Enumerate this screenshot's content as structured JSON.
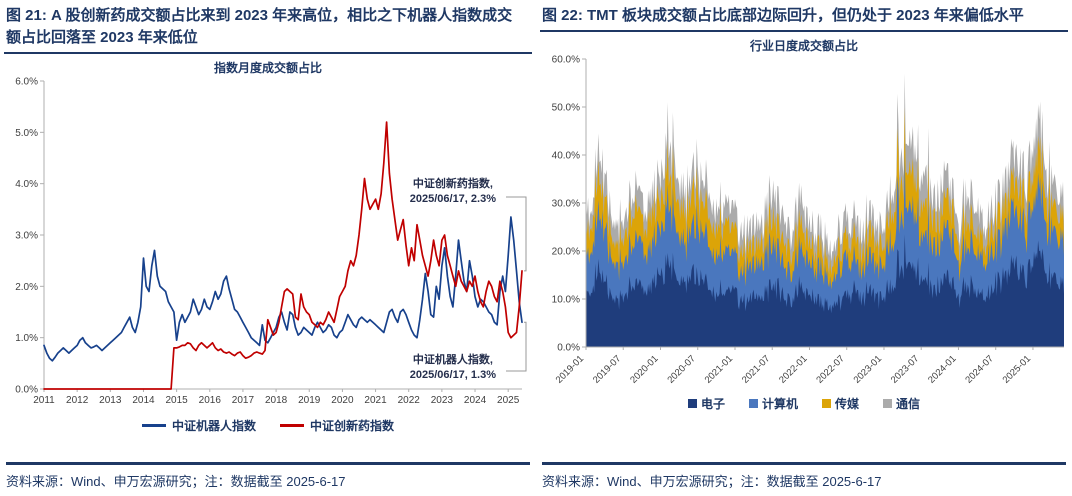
{
  "figures": [
    {
      "title": "图 21: A 股创新药成交额占比来到 2023 年来高位，相比之下机器人指数成交额占比回落至 2023 年来低位",
      "chart_title": "指数月度成交额占比",
      "source_note": "资料来源：Wind、申万宏源研究；注：数据截至 2025-6-17",
      "annotations": [
        {
          "line1": "中证创新药指数,",
          "line2": "2025/06/17, 2.3%",
          "value": 2.3,
          "series": "中证创新药指数"
        },
        {
          "line1": "中证机器人指数,",
          "line2": "2025/06/17, 1.3%",
          "value": 1.3,
          "series": "中证机器人指数"
        }
      ]
    },
    {
      "title": "图 22: TMT 板块成交额占比底部边际回升，但仍处于 2023 年来偏低水平",
      "chart_title": "行业日度成交额占比",
      "source_note": "资料来源：Wind、申万宏源研究；注：数据截至 2025-6-17"
    }
  ],
  "colors": {
    "title_navy": "#1F3864",
    "axis_line": "#AFAFAF",
    "tick_text": "#404040",
    "callout": "#9A9A9A"
  },
  "chart_data": [
    {
      "type": "line",
      "title": "指数月度成交额占比",
      "x_start": "2011-01",
      "x_end": "2025-06",
      "x_ticks": [
        "2011",
        "2012",
        "2013",
        "2014",
        "2015",
        "2016",
        "2017",
        "2018",
        "2019",
        "2020",
        "2021",
        "2022",
        "2023",
        "2024",
        "2025"
      ],
      "ylim": [
        0,
        6
      ],
      "y_ticks": [
        "0.0%",
        "1.0%",
        "2.0%",
        "3.0%",
        "4.0%",
        "5.0%",
        "6.0%"
      ],
      "legend_position": "bottom",
      "grid": false,
      "series": [
        {
          "name": "中证机器人指数",
          "color": "#17418C",
          "values": [
            0.85,
            0.7,
            0.6,
            0.55,
            0.62,
            0.7,
            0.75,
            0.8,
            0.75,
            0.7,
            0.75,
            0.8,
            0.85,
            0.95,
            1.0,
            0.9,
            0.85,
            0.8,
            0.82,
            0.85,
            0.8,
            0.75,
            0.8,
            0.85,
            0.9,
            0.95,
            1.0,
            1.05,
            1.1,
            1.2,
            1.3,
            1.4,
            1.2,
            1.1,
            1.3,
            1.6,
            2.55,
            2.0,
            1.9,
            2.4,
            2.7,
            2.2,
            2.0,
            1.95,
            1.9,
            1.7,
            1.6,
            1.5,
            0.95,
            1.3,
            1.45,
            1.3,
            1.4,
            1.5,
            1.75,
            1.6,
            1.45,
            1.55,
            1.75,
            1.6,
            1.55,
            1.7,
            1.9,
            1.75,
            1.85,
            2.1,
            2.2,
            1.95,
            1.75,
            1.55,
            1.5,
            1.4,
            1.3,
            1.2,
            1.1,
            1.0,
            0.95,
            0.9,
            0.85,
            1.25,
            0.95,
            0.9,
            1.0,
            1.1,
            1.2,
            1.4,
            1.5,
            1.3,
            1.15,
            1.5,
            1.45,
            1.2,
            1.05,
            1.1,
            1.2,
            1.15,
            1.1,
            1.05,
            1.2,
            1.3,
            1.2,
            1.1,
            1.15,
            1.25,
            1.2,
            1.05,
            1.0,
            1.1,
            1.15,
            1.3,
            1.45,
            1.35,
            1.25,
            1.2,
            1.35,
            1.4,
            1.35,
            1.3,
            1.35,
            1.3,
            1.25,
            1.2,
            1.15,
            1.1,
            1.3,
            1.5,
            1.55,
            1.4,
            1.3,
            1.5,
            1.55,
            1.45,
            1.3,
            1.15,
            1.05,
            1.0,
            1.35,
            1.75,
            2.25,
            1.9,
            1.45,
            1.4,
            2.0,
            1.75,
            2.4,
            2.75,
            2.2,
            1.8,
            1.6,
            2.2,
            2.9,
            2.5,
            2.1,
            1.9,
            2.5,
            2.2,
            1.8,
            1.6,
            1.75,
            1.7,
            1.6,
            1.5,
            1.45,
            1.3,
            1.25,
            1.9,
            2.2,
            1.9,
            2.6,
            3.35,
            2.9,
            2.3,
            1.7,
            1.3
          ]
        },
        {
          "name": "中证创新药指数",
          "color": "#C00000",
          "values": [
            0,
            0,
            0,
            0,
            0,
            0,
            0,
            0,
            0,
            0,
            0,
            0,
            0,
            0,
            0,
            0,
            0,
            0,
            0,
            0,
            0,
            0,
            0,
            0,
            0,
            0,
            0,
            0,
            0,
            0,
            0,
            0,
            0,
            0,
            0,
            0,
            0,
            0,
            0,
            0,
            0,
            0,
            0,
            0,
            0,
            0,
            0,
            0.8,
            0.8,
            0.82,
            0.85,
            0.85,
            0.9,
            0.88,
            0.8,
            0.75,
            0.85,
            0.9,
            0.85,
            0.8,
            0.85,
            0.9,
            0.8,
            0.75,
            0.78,
            0.72,
            0.7,
            0.72,
            0.68,
            0.65,
            0.7,
            0.72,
            0.65,
            0.6,
            0.62,
            0.65,
            0.7,
            0.72,
            0.7,
            0.68,
            0.75,
            1.35,
            1.2,
            1.05,
            1.1,
            1.3,
            1.6,
            1.9,
            1.95,
            1.9,
            1.85,
            1.4,
            1.35,
            1.85,
            1.6,
            1.5,
            1.45,
            1.3,
            1.25,
            1.2,
            1.3,
            1.25,
            1.35,
            1.5,
            1.4,
            1.3,
            1.55,
            1.8,
            1.9,
            2.0,
            2.3,
            2.5,
            2.4,
            2.6,
            3.0,
            3.5,
            4.1,
            3.7,
            3.5,
            3.6,
            3.7,
            3.5,
            3.8,
            4.4,
            5.2,
            4.2,
            3.7,
            3.3,
            2.9,
            3.1,
            3.3,
            2.8,
            2.4,
            2.75,
            2.5,
            3.2,
            2.9,
            2.6,
            2.4,
            2.2,
            2.5,
            2.9,
            2.6,
            2.4,
            2.9,
            3.0,
            2.6,
            2.4,
            2.2,
            2.0,
            2.3,
            2.1,
            2.0,
            1.9,
            2.1,
            2.0,
            2.2,
            1.9,
            1.7,
            1.6,
            1.9,
            2.1,
            2.0,
            1.8,
            1.7,
            2.1,
            1.9,
            1.6,
            1.1,
            1.0,
            1.05,
            1.1,
            1.6,
            2.3
          ]
        }
      ]
    },
    {
      "type": "area",
      "title": "行业日度成交额占比",
      "stacked": true,
      "x_start": "2019-01",
      "x_end": "2025-06",
      "x_ticks": [
        "2019-01",
        "2019-07",
        "2020-01",
        "2020-07",
        "2021-01",
        "2021-07",
        "2022-01",
        "2022-07",
        "2023-01",
        "2023-07",
        "2024-01",
        "2024-07",
        "2025-01"
      ],
      "ylim": [
        0,
        60
      ],
      "y_ticks": [
        "0.0%",
        "10.0%",
        "20.0%",
        "30.0%",
        "40.0%",
        "50.0%",
        "60.0%"
      ],
      "legend_position": "bottom",
      "grid": false,
      "note": "monthly mean levels (%); rendered with daily-style jitter",
      "series": [
        {
          "name": "电子",
          "color": "#1F3D7C",
          "values": [
            11,
            13,
            15,
            14,
            11,
            10,
            10,
            12,
            13,
            11,
            12,
            13,
            15,
            17,
            16,
            13,
            12,
            13,
            15,
            14,
            13,
            12,
            12,
            11,
            11,
            10,
            10,
            10,
            10,
            11,
            12,
            12,
            11,
            10,
            11,
            12,
            11,
            10,
            10,
            8,
            9,
            10,
            11,
            12,
            10,
            11,
            12,
            10,
            10,
            13,
            15,
            18,
            16,
            17,
            14,
            13,
            13,
            12,
            14,
            13,
            10,
            12,
            13,
            11,
            11,
            12,
            13,
            14,
            15,
            17,
            16,
            15,
            18,
            19,
            17,
            15,
            14,
            13
          ]
        },
        {
          "name": "计算机",
          "color": "#4A77BE",
          "values": [
            8,
            9,
            11,
            10,
            8,
            7,
            7,
            8,
            9,
            8,
            8,
            9,
            10,
            12,
            11,
            9,
            8,
            9,
            11,
            10,
            9,
            8,
            8,
            8,
            7,
            6,
            7,
            6,
            7,
            8,
            8,
            8,
            7,
            6,
            7,
            8,
            7,
            6,
            7,
            5,
            6,
            7,
            7,
            7,
            6,
            7,
            7,
            6,
            7,
            9,
            11,
            13,
            11,
            12,
            10,
            9,
            9,
            8,
            10,
            9,
            7,
            8,
            9,
            8,
            7,
            8,
            8,
            9,
            10,
            11,
            11,
            10,
            12,
            13,
            11,
            10,
            9,
            9
          ]
        },
        {
          "name": "传媒",
          "color": "#DCA408",
          "values": [
            5,
            6,
            7,
            6,
            5,
            4,
            5,
            6,
            6,
            5,
            6,
            6,
            6,
            7,
            7,
            6,
            6,
            6,
            7,
            6,
            6,
            6,
            6,
            5,
            5,
            4,
            4,
            4,
            4,
            5,
            5,
            5,
            5,
            4,
            5,
            5,
            4,
            4,
            4,
            3,
            4,
            4,
            4,
            5,
            4,
            4,
            5,
            4,
            4,
            6,
            7,
            8,
            7,
            8,
            6,
            6,
            6,
            5,
            6,
            6,
            4,
            5,
            5,
            4,
            4,
            4,
            5,
            5,
            5,
            6,
            6,
            6,
            6,
            7,
            6,
            5,
            5,
            4
          ]
        },
        {
          "name": "通信",
          "color": "#ABABAB",
          "values": [
            4,
            4,
            5,
            5,
            4,
            4,
            4,
            4,
            4,
            4,
            4,
            4,
            5,
            6,
            6,
            4,
            4,
            4,
            5,
            5,
            5,
            4,
            4,
            4,
            4,
            4,
            4,
            4,
            4,
            4,
            5,
            5,
            5,
            4,
            5,
            5,
            4,
            4,
            4,
            4,
            3,
            4,
            4,
            4,
            4,
            4,
            4,
            4,
            4,
            4,
            5,
            6,
            6,
            6,
            6,
            6,
            4,
            5,
            5,
            4,
            4,
            5,
            5,
            5,
            4,
            4,
            4,
            4,
            5,
            6,
            5,
            5,
            6,
            6,
            6,
            5,
            4,
            4
          ]
        }
      ]
    }
  ]
}
